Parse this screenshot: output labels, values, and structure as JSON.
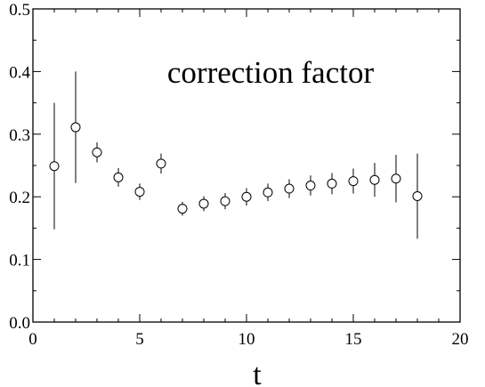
{
  "chart_data": {
    "type": "scatter",
    "title": "correction factor",
    "xlabel": "t",
    "ylabel": "",
    "xlim": [
      0,
      20
    ],
    "ylim": [
      0.0,
      0.5
    ],
    "xticks": [
      0,
      5,
      10,
      15,
      20
    ],
    "xtick_labels": [
      "0",
      "5",
      "10",
      "15",
      "20"
    ],
    "yticks": [
      0.0,
      0.1,
      0.2,
      0.3,
      0.4,
      0.5
    ],
    "ytick_labels": [
      "0.0",
      "0.1",
      "0.2",
      "0.3",
      "0.4",
      "0.5"
    ],
    "grid": false,
    "marker": "open-circle",
    "color": "#000000",
    "series": [
      {
        "x": [
          1,
          2,
          3,
          4,
          5,
          6,
          7,
          8,
          9,
          10,
          11,
          12,
          13,
          14,
          15,
          16,
          17,
          18
        ],
        "y": [
          0.249,
          0.311,
          0.271,
          0.231,
          0.208,
          0.253,
          0.181,
          0.189,
          0.193,
          0.2,
          0.207,
          0.213,
          0.218,
          0.221,
          0.225,
          0.227,
          0.229,
          0.201
        ],
        "yerr": [
          0.101,
          0.089,
          0.016,
          0.015,
          0.013,
          0.016,
          0.011,
          0.012,
          0.013,
          0.014,
          0.014,
          0.015,
          0.016,
          0.017,
          0.02,
          0.027,
          0.038,
          0.068
        ]
      }
    ]
  }
}
